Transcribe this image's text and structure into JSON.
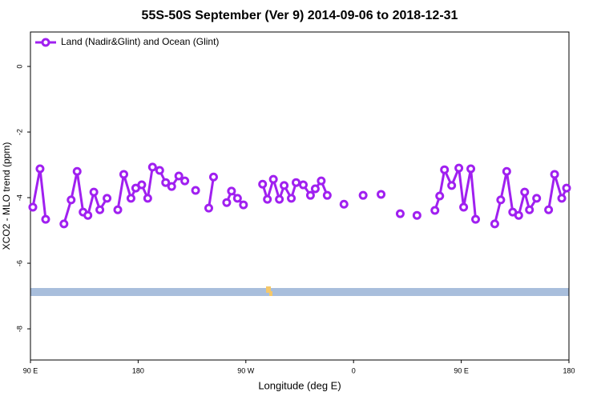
{
  "chart_data": {
    "type": "line",
    "title": "55S-50S September (Ver 9)   2014-09-06 to 2018-12-31",
    "x_label": "Longitude (deg E)",
    "y_label": "XCO2 - MLO trend (ppm)",
    "xlim": [
      90,
      540
    ],
    "xticks": [
      {
        "value": 90,
        "label": "90 E"
      },
      {
        "value": 180,
        "label": "180"
      },
      {
        "value": 270,
        "label": "90 W"
      },
      {
        "value": 360,
        "label": "0"
      },
      {
        "value": 450,
        "label": "90 E"
      },
      {
        "value": 540,
        "label": "180"
      }
    ],
    "ylim": [
      -8.95,
      1.05
    ],
    "yticks": [
      0,
      -2,
      -4,
      -6,
      -8
    ],
    "legend": "top-left",
    "series": [
      {
        "name": "Land (Nadir&Glint) and Ocean (Glint)",
        "color": "#a020f0",
        "x": [
          92,
          98,
          102.7,
          null,
          118,
          124,
          129,
          134,
          138,
          143,
          148,
          154,
          null,
          163,
          168,
          174,
          178,
          183,
          188,
          192,
          198,
          203,
          208,
          214,
          219,
          null,
          228,
          null,
          239,
          243,
          null,
          254,
          258,
          263,
          268,
          null,
          284,
          288,
          293,
          298,
          302,
          308,
          312,
          318,
          324,
          328,
          333,
          338,
          null,
          352,
          null,
          368,
          null,
          383,
          null,
          399,
          null,
          413,
          null,
          428,
          432,
          436,
          442,
          448,
          452,
          458,
          462,
          null,
          478,
          483,
          488,
          493,
          498,
          503,
          507,
          513,
          null,
          523,
          528,
          534,
          538
        ],
        "values": [
          -4.29,
          -3.12,
          -4.66,
          null,
          -4.8,
          -4.07,
          -3.2,
          -4.44,
          -4.54,
          -3.83,
          -4.37,
          -4.02,
          null,
          -4.37,
          -3.29,
          -4.02,
          -3.71,
          -3.61,
          -4.02,
          -3.07,
          -3.17,
          -3.54,
          -3.66,
          -3.34,
          -3.49,
          null,
          -3.78,
          null,
          -4.32,
          -3.37,
          null,
          -4.15,
          -3.8,
          -4.02,
          -4.22,
          null,
          -3.59,
          -4.05,
          -3.44,
          -4.05,
          -3.63,
          -4.02,
          -3.54,
          -3.61,
          -3.93,
          -3.73,
          -3.49,
          -3.93,
          null,
          -4.2,
          null,
          -3.93,
          null,
          -3.9,
          null,
          -4.49,
          null,
          -4.54,
          null,
          -4.39,
          -3.95,
          -3.15,
          -3.63,
          -3.1,
          -4.29,
          -3.12,
          -4.66,
          null,
          -4.8,
          -4.07,
          -3.2,
          -4.44,
          -4.54,
          -3.83,
          -4.37,
          -4.02,
          null,
          -4.37,
          -3.29,
          -4.02,
          -3.71
        ]
      }
    ]
  }
}
